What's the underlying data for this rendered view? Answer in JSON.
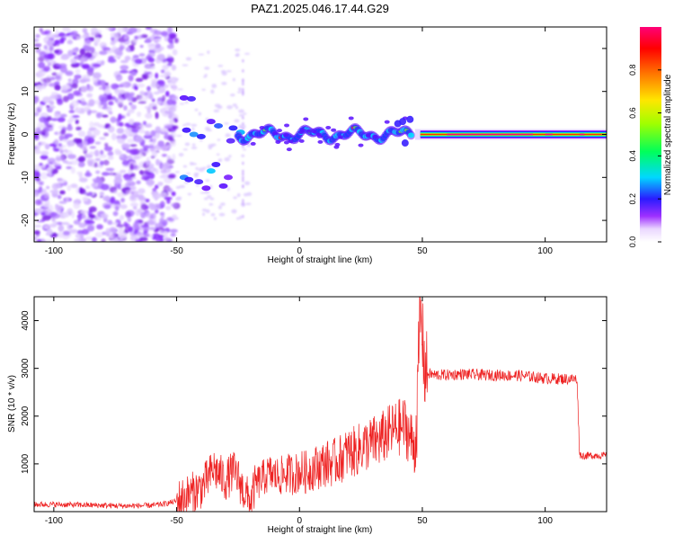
{
  "title": "PAZ1.2025.046.17.44.G29",
  "chart_data": [
    {
      "type": "heatmap",
      "xlabel": "Height of straight line (km)",
      "ylabel": "Frequency (Hz)",
      "xlim": [
        -108,
        125
      ],
      "ylim": [
        -25,
        25
      ],
      "xticks": [
        -100,
        -50,
        0,
        50,
        100
      ],
      "yticks": [
        -20,
        -10,
        0,
        10,
        20
      ],
      "colorbar": {
        "label": "Normalized spectral amplitude",
        "range": [
          0,
          1
        ],
        "ticks": [
          0.0,
          0.2,
          0.4,
          0.6,
          0.8
        ]
      },
      "grid": false,
      "description_of_structure": {
        "noise_region_x": [
          -108,
          -50
        ],
        "tone_center_hz": 0,
        "strong_tone_start_x": 47,
        "strong_tone_end_x": 125
      }
    },
    {
      "type": "line",
      "xlabel": "Height of straight line (km)",
      "ylabel": "SNR (10 * v/v)",
      "xlim": [
        -108,
        125
      ],
      "ylim": [
        0,
        4500
      ],
      "xticks": [
        -100,
        -50,
        0,
        50,
        100
      ],
      "yticks": [
        1000,
        2000,
        3000,
        4000
      ],
      "grid": false,
      "color": "#ee2222",
      "series": [
        {
          "name": "",
          "x": [
            -108,
            -100,
            -90,
            -80,
            -70,
            -60,
            -55,
            -50,
            -45,
            -40,
            -37,
            -35,
            -33,
            -30,
            -27,
            -25,
            -23,
            -20,
            -18,
            -15,
            -12,
            -10,
            -7,
            -5,
            -2,
            0,
            3,
            5,
            8,
            10,
            13,
            15,
            18,
            20,
            23,
            25,
            28,
            30,
            33,
            35,
            38,
            40,
            43,
            45,
            47,
            48,
            49,
            50,
            51,
            52,
            55,
            60,
            65,
            70,
            75,
            80,
            85,
            90,
            95,
            100,
            105,
            110,
            113,
            114,
            115,
            118,
            120,
            125
          ],
          "y": [
            150,
            150,
            140,
            130,
            120,
            130,
            160,
            220,
            350,
            500,
            700,
            900,
            800,
            650,
            850,
            700,
            450,
            200,
            550,
            700,
            800,
            750,
            750,
            800,
            780,
            850,
            820,
            900,
            950,
            1000,
            1020,
            1050,
            1150,
            1250,
            1250,
            1350,
            1400,
            1450,
            1500,
            1600,
            1700,
            1750,
            1800,
            1550,
            1350,
            2200,
            4200,
            3700,
            2950,
            2900,
            2860,
            2860,
            2880,
            2870,
            2860,
            2860,
            2850,
            2850,
            2820,
            2790,
            2780,
            2780,
            2770,
            1200,
            1170,
            1170,
            1180,
            1170
          ]
        }
      ]
    }
  ]
}
